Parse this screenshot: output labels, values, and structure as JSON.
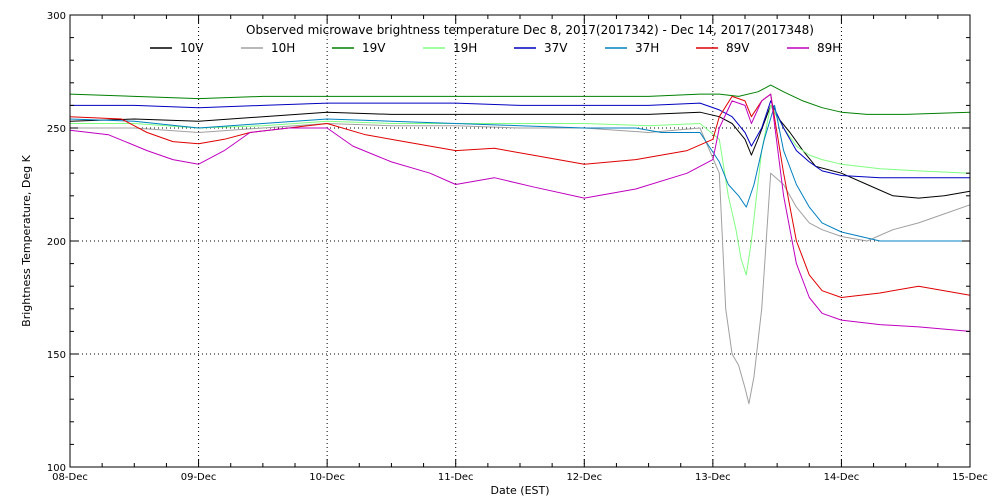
{
  "chart_data": {
    "type": "line",
    "title": "Observed microwave brightness temperature Dec  8, 2017(2017342) - Dec 14, 2017(2017348)",
    "xlabel": "Date (EST)",
    "ylabel": "Brightness Temperature, Deg K",
    "xlim": [
      0,
      7
    ],
    "ylim": [
      100,
      300
    ],
    "x_ticks": [
      {
        "value": 0,
        "label": "08-Dec"
      },
      {
        "value": 1,
        "label": "09-Dec"
      },
      {
        "value": 2,
        "label": "10-Dec"
      },
      {
        "value": 3,
        "label": "11-Dec"
      },
      {
        "value": 4,
        "label": "12-Dec"
      },
      {
        "value": 5,
        "label": "13-Dec"
      },
      {
        "value": 6,
        "label": "14-Dec"
      },
      {
        "value": 7,
        "label": "15-Dec"
      }
    ],
    "y_ticks": [
      {
        "value": 100,
        "label": "100"
      },
      {
        "value": 150,
        "label": "150"
      },
      {
        "value": 200,
        "label": "200"
      },
      {
        "value": 250,
        "label": "250"
      },
      {
        "value": 300,
        "label": "300"
      }
    ],
    "grid": true,
    "legend_position": "top",
    "series": [
      {
        "name": "10V",
        "color": "#000000",
        "points": [
          [
            0,
            253
          ],
          [
            0.5,
            254
          ],
          [
            1,
            253
          ],
          [
            1.5,
            255
          ],
          [
            2,
            257
          ],
          [
            2.5,
            256
          ],
          [
            3,
            256
          ],
          [
            3.5,
            256
          ],
          [
            4,
            256
          ],
          [
            4.5,
            256
          ],
          [
            4.9,
            257
          ],
          [
            5.05,
            255
          ],
          [
            5.15,
            252
          ],
          [
            5.25,
            245
          ],
          [
            5.3,
            238
          ],
          [
            5.35,
            245
          ],
          [
            5.45,
            260
          ],
          [
            5.5,
            255
          ],
          [
            5.6,
            248
          ],
          [
            5.7,
            240
          ],
          [
            5.8,
            233
          ],
          [
            6,
            230
          ],
          [
            6.2,
            225
          ],
          [
            6.4,
            220
          ],
          [
            6.6,
            219
          ],
          [
            6.8,
            220
          ],
          [
            7,
            222
          ]
        ]
      },
      {
        "name": "10H",
        "color": "#a0a0a0",
        "points": [
          [
            0,
            250
          ],
          [
            0.5,
            250
          ],
          [
            1,
            248
          ],
          [
            1.5,
            250
          ],
          [
            2,
            252
          ],
          [
            2.5,
            251
          ],
          [
            3,
            251
          ],
          [
            3.5,
            250
          ],
          [
            4,
            250
          ],
          [
            4.5,
            248
          ],
          [
            4.9,
            250
          ],
          [
            5.05,
            230
          ],
          [
            5.1,
            170
          ],
          [
            5.15,
            150
          ],
          [
            5.2,
            145
          ],
          [
            5.25,
            135
          ],
          [
            5.28,
            128
          ],
          [
            5.32,
            140
          ],
          [
            5.38,
            170
          ],
          [
            5.45,
            230
          ],
          [
            5.55,
            225
          ],
          [
            5.65,
            215
          ],
          [
            5.75,
            208
          ],
          [
            5.85,
            205
          ],
          [
            6,
            202
          ],
          [
            6.2,
            200
          ],
          [
            6.4,
            205
          ],
          [
            6.6,
            208
          ],
          [
            6.8,
            212
          ],
          [
            7,
            216
          ]
        ]
      },
      {
        "name": "19V",
        "color": "#008000",
        "points": [
          [
            0,
            265
          ],
          [
            0.5,
            264
          ],
          [
            1,
            263
          ],
          [
            1.5,
            264
          ],
          [
            2,
            264
          ],
          [
            2.5,
            264
          ],
          [
            3,
            264
          ],
          [
            3.5,
            264
          ],
          [
            4,
            264
          ],
          [
            4.5,
            264
          ],
          [
            4.9,
            265
          ],
          [
            5.05,
            265
          ],
          [
            5.2,
            264
          ],
          [
            5.35,
            266
          ],
          [
            5.45,
            269
          ],
          [
            5.55,
            266
          ],
          [
            5.7,
            262
          ],
          [
            5.85,
            259
          ],
          [
            6,
            257
          ],
          [
            6.2,
            256
          ],
          [
            6.5,
            256
          ],
          [
            7,
            257
          ]
        ]
      },
      {
        "name": "19H",
        "color": "#80ff80",
        "points": [
          [
            0,
            252
          ],
          [
            0.5,
            252
          ],
          [
            1,
            250
          ],
          [
            1.5,
            251
          ],
          [
            2,
            253
          ],
          [
            2.5,
            252
          ],
          [
            3,
            252
          ],
          [
            3.5,
            252
          ],
          [
            4,
            252
          ],
          [
            4.5,
            251
          ],
          [
            4.9,
            252
          ],
          [
            5.05,
            245
          ],
          [
            5.12,
            220
          ],
          [
            5.18,
            205
          ],
          [
            5.22,
            192
          ],
          [
            5.26,
            185
          ],
          [
            5.3,
            200
          ],
          [
            5.38,
            240
          ],
          [
            5.45,
            260
          ],
          [
            5.55,
            250
          ],
          [
            5.65,
            242
          ],
          [
            5.75,
            238
          ],
          [
            5.85,
            236
          ],
          [
            6,
            234
          ],
          [
            6.3,
            232
          ],
          [
            6.6,
            231
          ],
          [
            7,
            230
          ]
        ]
      },
      {
        "name": "37V",
        "color": "#0000c0",
        "points": [
          [
            0,
            260
          ],
          [
            0.5,
            260
          ],
          [
            1,
            259
          ],
          [
            1.5,
            260
          ],
          [
            2,
            261
          ],
          [
            2.5,
            261
          ],
          [
            3,
            261
          ],
          [
            3.5,
            260
          ],
          [
            4,
            260
          ],
          [
            4.5,
            260
          ],
          [
            4.9,
            261
          ],
          [
            5.05,
            258
          ],
          [
            5.15,
            255
          ],
          [
            5.25,
            248
          ],
          [
            5.3,
            242
          ],
          [
            5.38,
            250
          ],
          [
            5.45,
            262
          ],
          [
            5.55,
            250
          ],
          [
            5.65,
            240
          ],
          [
            5.75,
            235
          ],
          [
            5.85,
            231
          ],
          [
            6,
            229
          ],
          [
            6.3,
            228
          ],
          [
            6.6,
            228
          ],
          [
            7,
            228
          ]
        ]
      },
      {
        "name": "37H",
        "color": "#0080c0",
        "points": [
          [
            0,
            254
          ],
          [
            0.5,
            253
          ],
          [
            1,
            250
          ],
          [
            1.5,
            252
          ],
          [
            2,
            254
          ],
          [
            2.5,
            253
          ],
          [
            3,
            252
          ],
          [
            3.5,
            251
          ],
          [
            4,
            250
          ],
          [
            4.4,
            250
          ],
          [
            4.6,
            248
          ],
          [
            4.9,
            248
          ],
          [
            5.05,
            235
          ],
          [
            5.12,
            225
          ],
          [
            5.2,
            220
          ],
          [
            5.26,
            215
          ],
          [
            5.32,
            225
          ],
          [
            5.4,
            245
          ],
          [
            5.48,
            260
          ],
          [
            5.55,
            240
          ],
          [
            5.65,
            225
          ],
          [
            5.75,
            215
          ],
          [
            5.85,
            208
          ],
          [
            6,
            204
          ],
          [
            6.3,
            200
          ],
          [
            6.6,
            200
          ],
          [
            7,
            200
          ]
        ]
      },
      {
        "name": "89V",
        "color": "#e00000",
        "points": [
          [
            0,
            255
          ],
          [
            0.4,
            254
          ],
          [
            0.6,
            248
          ],
          [
            0.8,
            244
          ],
          [
            1,
            243
          ],
          [
            1.2,
            245
          ],
          [
            1.4,
            248
          ],
          [
            1.7,
            250
          ],
          [
            2,
            252
          ],
          [
            2.3,
            247
          ],
          [
            2.6,
            244
          ],
          [
            2.8,
            242
          ],
          [
            3,
            240
          ],
          [
            3.3,
            241
          ],
          [
            3.6,
            238
          ],
          [
            4,
            234
          ],
          [
            4.4,
            236
          ],
          [
            4.8,
            240
          ],
          [
            5.0,
            245
          ],
          [
            5.05,
            255
          ],
          [
            5.15,
            264
          ],
          [
            5.25,
            262
          ],
          [
            5.3,
            255
          ],
          [
            5.38,
            262
          ],
          [
            5.45,
            265
          ],
          [
            5.55,
            230
          ],
          [
            5.65,
            200
          ],
          [
            5.75,
            185
          ],
          [
            5.85,
            178
          ],
          [
            6,
            175
          ],
          [
            6.3,
            177
          ],
          [
            6.6,
            180
          ],
          [
            7,
            176
          ]
        ]
      },
      {
        "name": "89H",
        "color": "#c000c0",
        "points": [
          [
            0,
            249
          ],
          [
            0.3,
            247
          ],
          [
            0.6,
            240
          ],
          [
            0.8,
            236
          ],
          [
            1,
            234
          ],
          [
            1.2,
            240
          ],
          [
            1.4,
            248
          ],
          [
            1.7,
            250
          ],
          [
            2,
            250
          ],
          [
            2.2,
            242
          ],
          [
            2.5,
            235
          ],
          [
            2.8,
            230
          ],
          [
            3,
            225
          ],
          [
            3.3,
            228
          ],
          [
            3.6,
            224
          ],
          [
            4,
            219
          ],
          [
            4.4,
            223
          ],
          [
            4.8,
            230
          ],
          [
            5.0,
            236
          ],
          [
            5.05,
            250
          ],
          [
            5.15,
            262
          ],
          [
            5.25,
            260
          ],
          [
            5.3,
            252
          ],
          [
            5.38,
            262
          ],
          [
            5.45,
            265
          ],
          [
            5.55,
            220
          ],
          [
            5.65,
            190
          ],
          [
            5.75,
            175
          ],
          [
            5.85,
            168
          ],
          [
            6,
            165
          ],
          [
            6.3,
            163
          ],
          [
            6.6,
            162
          ],
          [
            7,
            160
          ]
        ]
      }
    ]
  }
}
